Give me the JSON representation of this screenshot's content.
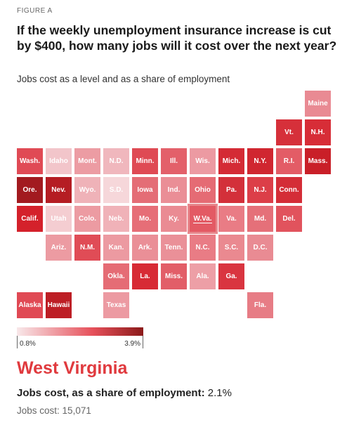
{
  "figure_label": "FIGURE A",
  "title": "If the weekly unemployment insurance increase is cut by $400, how many jobs will it cost over the next year?",
  "subtitle": "Jobs cost as a level and as a share of employment",
  "legend": {
    "min_label": "0.8%",
    "max_label": "3.9%",
    "min_color": "#f8e8ea",
    "max_color": "#8b1a1a"
  },
  "selected_state": {
    "name": "West Virginia",
    "share_label": "Jobs cost, as a share of employment:",
    "share_value": "2.1%",
    "count_label": "Jobs cost:",
    "count_value": "15,071"
  },
  "states": [
    {
      "abbr": "Maine",
      "row": 0,
      "col": 10,
      "color": "#e98a93"
    },
    {
      "abbr": "Vt.",
      "row": 1,
      "col": 9,
      "color": "#d6303a"
    },
    {
      "abbr": "N.H.",
      "row": 1,
      "col": 10,
      "color": "#d72d37"
    },
    {
      "abbr": "Wash.",
      "row": 2,
      "col": 0,
      "color": "#e04a55"
    },
    {
      "abbr": "Idaho",
      "row": 2,
      "col": 1,
      "color": "#f2c5ca"
    },
    {
      "abbr": "Mont.",
      "row": 2,
      "col": 2,
      "color": "#ec9ca3"
    },
    {
      "abbr": "N.D.",
      "row": 2,
      "col": 3,
      "color": "#f0b7bd"
    },
    {
      "abbr": "Minn.",
      "row": 2,
      "col": 4,
      "color": "#df4a54"
    },
    {
      "abbr": "Ill.",
      "row": 2,
      "col": 5,
      "color": "#e3606a"
    },
    {
      "abbr": "Wis.",
      "row": 2,
      "col": 6,
      "color": "#ec9aa2"
    },
    {
      "abbr": "Mich.",
      "row": 2,
      "col": 7,
      "color": "#d42b35"
    },
    {
      "abbr": "N.Y.",
      "row": 2,
      "col": 8,
      "color": "#d02630"
    },
    {
      "abbr": "R.I.",
      "row": 2,
      "col": 9,
      "color": "#e35c66"
    },
    {
      "abbr": "Mass.",
      "row": 2,
      "col": 10,
      "color": "#c91f28"
    },
    {
      "abbr": "Ore.",
      "row": 3,
      "col": 0,
      "color": "#a21a1f"
    },
    {
      "abbr": "Nev.",
      "row": 3,
      "col": 1,
      "color": "#b51d23"
    },
    {
      "abbr": "Wyo.",
      "row": 3,
      "col": 2,
      "color": "#efb2b8"
    },
    {
      "abbr": "S.D.",
      "row": 3,
      "col": 3,
      "color": "#f6d7da"
    },
    {
      "abbr": "Iowa",
      "row": 3,
      "col": 4,
      "color": "#e46d76"
    },
    {
      "abbr": "Ind.",
      "row": 3,
      "col": 5,
      "color": "#ea8e96"
    },
    {
      "abbr": "Ohio",
      "row": 3,
      "col": 6,
      "color": "#e56b74"
    },
    {
      "abbr": "Pa.",
      "row": 3,
      "col": 7,
      "color": "#d3303a"
    },
    {
      "abbr": "N.J.",
      "row": 3,
      "col": 8,
      "color": "#dc3e48"
    },
    {
      "abbr": "Conn.",
      "row": 3,
      "col": 9,
      "color": "#d42d37"
    },
    {
      "abbr": "Calif.",
      "row": 4,
      "col": 0,
      "color": "#d4212b"
    },
    {
      "abbr": "Utah",
      "row": 4,
      "col": 1,
      "color": "#f4cdd1"
    },
    {
      "abbr": "Colo.",
      "row": 4,
      "col": 2,
      "color": "#ec9ba2"
    },
    {
      "abbr": "Neb.",
      "row": 4,
      "col": 3,
      "color": "#f0b2b8"
    },
    {
      "abbr": "Mo.",
      "row": 4,
      "col": 4,
      "color": "#e66e77"
    },
    {
      "abbr": "Ky.",
      "row": 4,
      "col": 5,
      "color": "#ea8b93"
    },
    {
      "abbr": "W.Va.",
      "row": 4,
      "col": 6,
      "color": "#e35a64",
      "selected": true
    },
    {
      "abbr": "Va.",
      "row": 4,
      "col": 7,
      "color": "#e97c85"
    },
    {
      "abbr": "Md.",
      "row": 4,
      "col": 8,
      "color": "#e57079"
    },
    {
      "abbr": "Del.",
      "row": 4,
      "col": 9,
      "color": "#e1535d"
    },
    {
      "abbr": "Ariz.",
      "row": 5,
      "col": 1,
      "color": "#ec9ba2"
    },
    {
      "abbr": "N.M.",
      "row": 5,
      "col": 2,
      "color": "#e04c56"
    },
    {
      "abbr": "Kan.",
      "row": 5,
      "col": 3,
      "color": "#ec9aa1"
    },
    {
      "abbr": "Ark.",
      "row": 5,
      "col": 4,
      "color": "#ea8f97"
    },
    {
      "abbr": "Tenn.",
      "row": 5,
      "col": 5,
      "color": "#ea9098"
    },
    {
      "abbr": "N.C.",
      "row": 5,
      "col": 6,
      "color": "#e97c85"
    },
    {
      "abbr": "S.C.",
      "row": 5,
      "col": 7,
      "color": "#ea8990"
    },
    {
      "abbr": "D.C.",
      "row": 5,
      "col": 8,
      "color": "#e98b93"
    },
    {
      "abbr": "Okla.",
      "row": 6,
      "col": 3,
      "color": "#e56c75"
    },
    {
      "abbr": "La.",
      "row": 6,
      "col": 4,
      "color": "#d72b35"
    },
    {
      "abbr": "Miss.",
      "row": 6,
      "col": 5,
      "color": "#e25e68"
    },
    {
      "abbr": "Ala.",
      "row": 6,
      "col": 6,
      "color": "#ed9fa6"
    },
    {
      "abbr": "Ga.",
      "row": 6,
      "col": 7,
      "color": "#d93540"
    },
    {
      "abbr": "Alaska",
      "row": 7,
      "col": 0,
      "color": "#e04954"
    },
    {
      "abbr": "Hawaii",
      "row": 7,
      "col": 1,
      "color": "#bd1e25"
    },
    {
      "abbr": "Texas",
      "row": 7,
      "col": 3,
      "color": "#ec9aa2"
    },
    {
      "abbr": "Fla.",
      "row": 7,
      "col": 8,
      "color": "#e77c85"
    }
  ]
}
